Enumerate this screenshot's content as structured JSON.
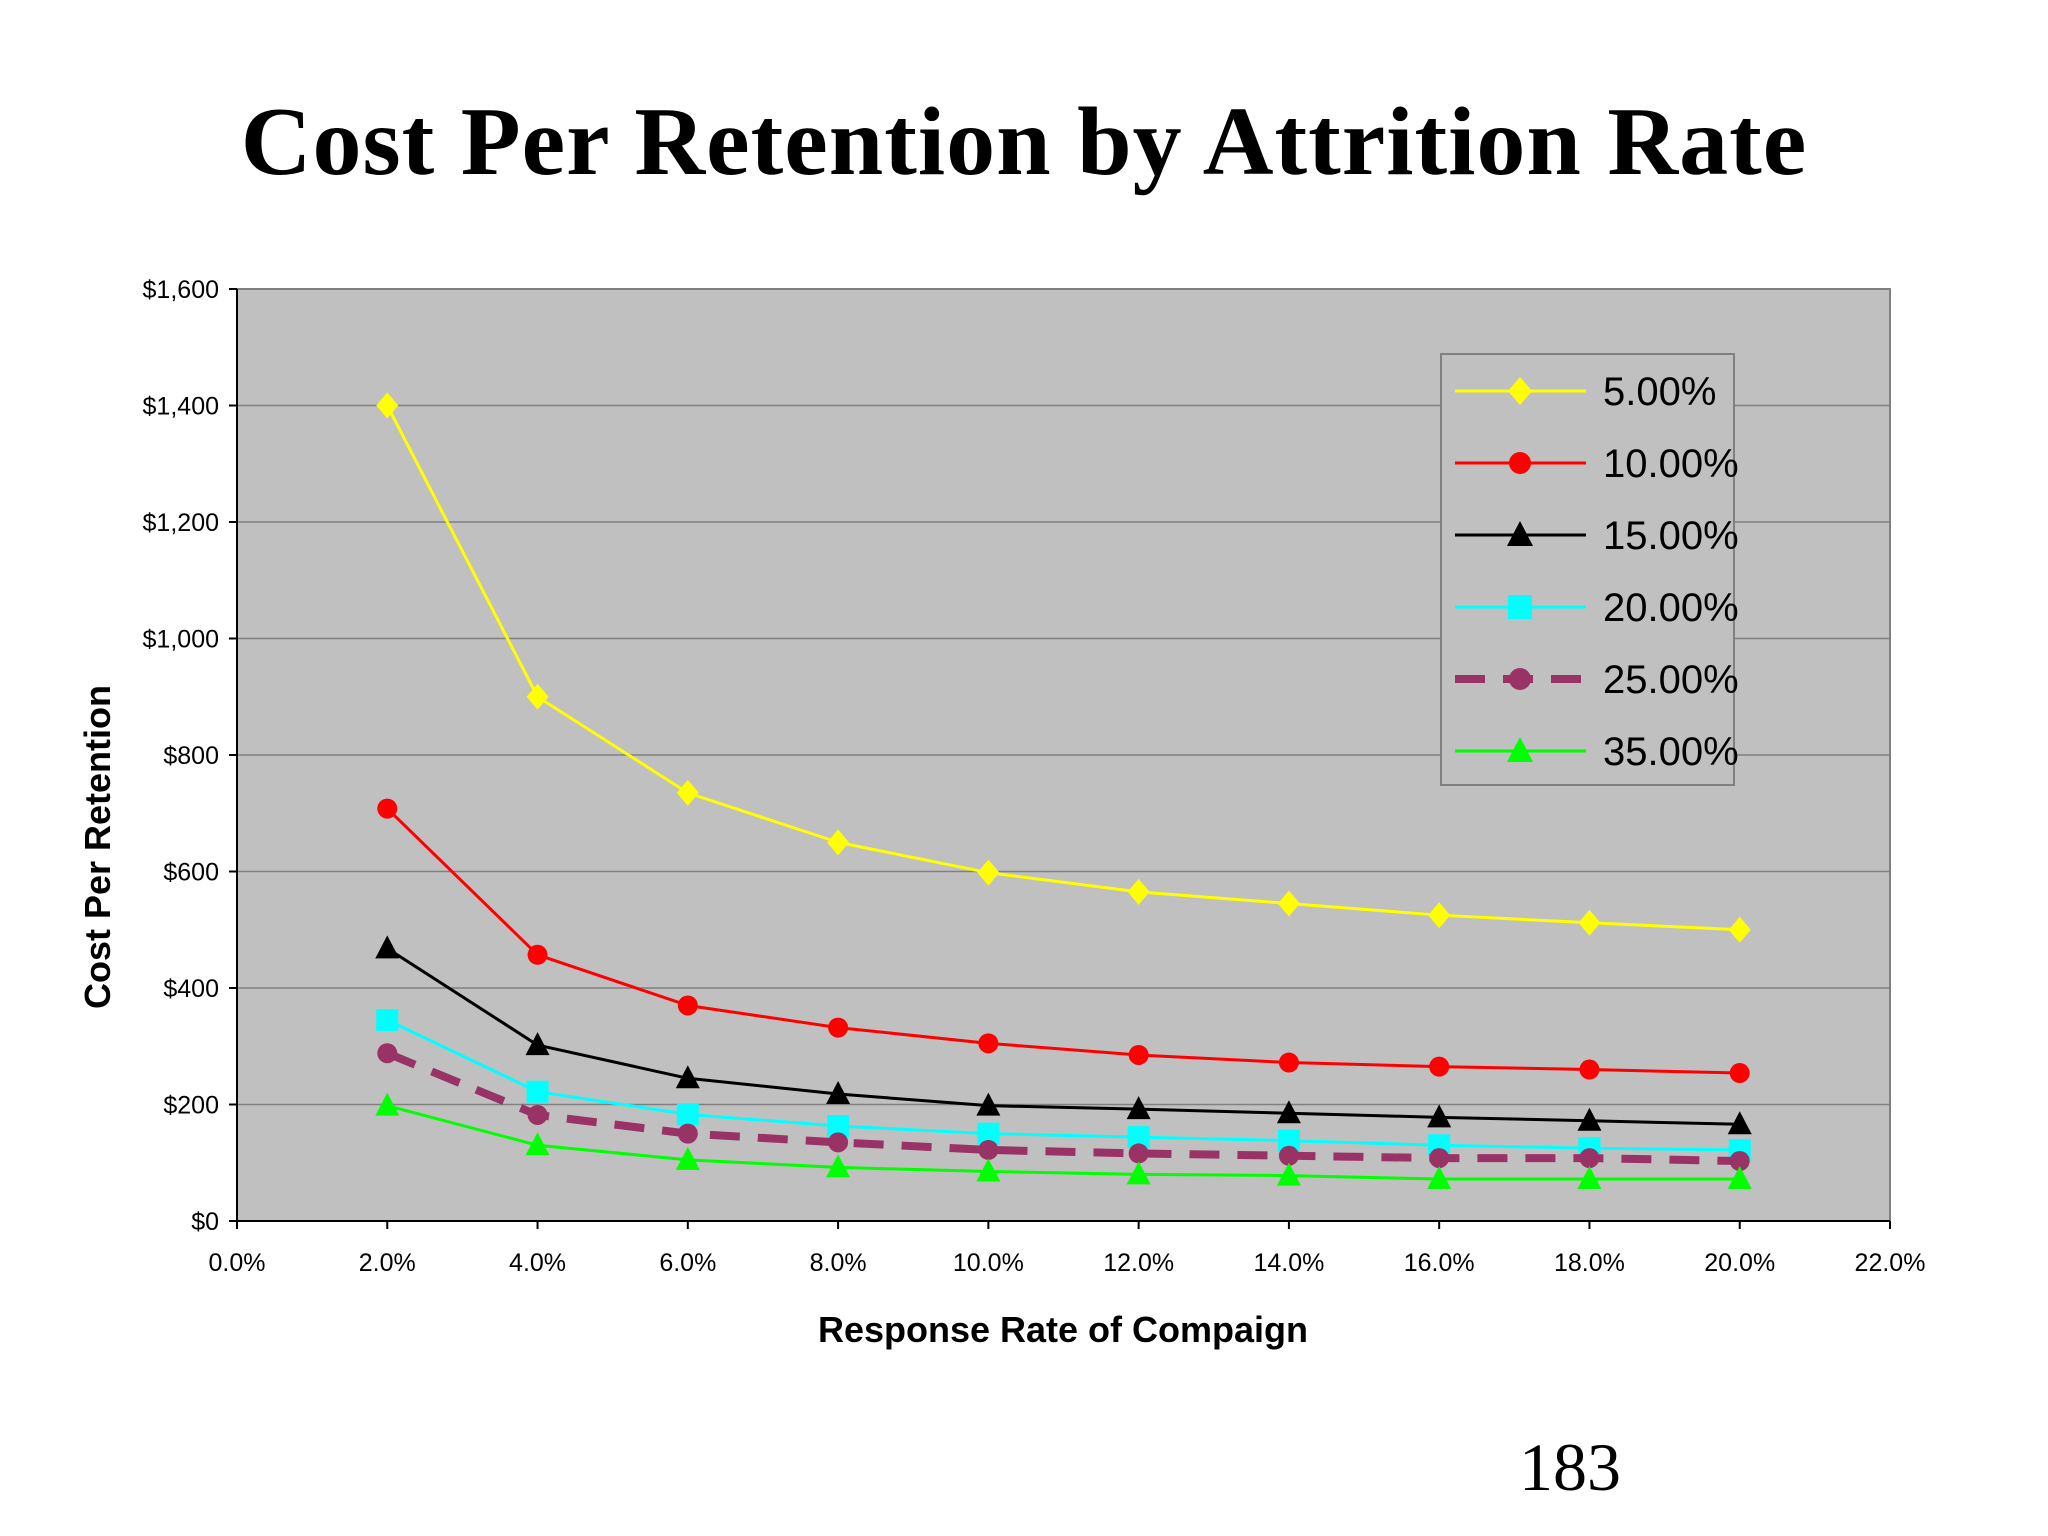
{
  "slide": {
    "title": "Cost Per Retention by Attrition Rate",
    "page_number": "183"
  },
  "chart_data": {
    "type": "line",
    "title": "Cost Per Retention by Attrition Rate",
    "xlabel": "Response Rate of Compaign",
    "ylabel": "Cost Per Retention",
    "xlim": [
      0,
      22
    ],
    "ylim": [
      0,
      1600
    ],
    "x_tick_values": [
      0,
      2,
      4,
      6,
      8,
      10,
      12,
      14,
      16,
      18,
      20,
      22
    ],
    "x_tick_labels": [
      "0.0%",
      "2.0%",
      "4.0%",
      "6.0%",
      "8.0%",
      "10.0%",
      "12.0%",
      "14.0%",
      "16.0%",
      "18.0%",
      "20.0%",
      "22.0%"
    ],
    "y_tick_values": [
      0,
      200,
      400,
      600,
      800,
      1000,
      1200,
      1400,
      1600
    ],
    "y_tick_labels": [
      "$0",
      "$200",
      "$400",
      "$600",
      "$800",
      "$1,000",
      "$1,200",
      "$1,400",
      "$1,600"
    ],
    "x": [
      2,
      4,
      6,
      8,
      10,
      12,
      14,
      16,
      18,
      20
    ],
    "grid": true,
    "legend_position": "top-right",
    "plot_background": "#c0c0c0",
    "series": [
      {
        "name": "5.00%",
        "color": "#ffff00",
        "marker": "diamond",
        "dashed": false,
        "values": [
          1400,
          900,
          735,
          650,
          598,
          565,
          545,
          525,
          512,
          500
        ]
      },
      {
        "name": "10.00%",
        "color": "#ff0000",
        "marker": "circle",
        "dashed": false,
        "values": [
          708,
          457,
          370,
          332,
          305,
          285,
          272,
          265,
          260,
          254
        ]
      },
      {
        "name": "15.00%",
        "color": "#000000",
        "marker": "triangle",
        "dashed": false,
        "values": [
          468,
          302,
          245,
          218,
          198,
          192,
          185,
          178,
          172,
          166
        ]
      },
      {
        "name": "20.00%",
        "color": "#00ffff",
        "marker": "square",
        "dashed": false,
        "values": [
          345,
          222,
          183,
          163,
          150,
          144,
          138,
          130,
          125,
          122
        ]
      },
      {
        "name": "25.00%",
        "color": "#993366",
        "marker": "circle",
        "dashed": true,
        "values": [
          288,
          182,
          150,
          135,
          122,
          116,
          112,
          108,
          108,
          103
        ]
      },
      {
        "name": "35.00%",
        "color": "#00ff00",
        "marker": "triangle",
        "dashed": false,
        "values": [
          198,
          130,
          105,
          92,
          85,
          80,
          78,
          72,
          72,
          72
        ]
      }
    ]
  }
}
